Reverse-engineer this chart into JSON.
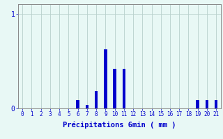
{
  "title": "",
  "xlabel": "Précipitations 6min ( mm )",
  "ylabel": "",
  "xlim": [
    -0.5,
    21.5
  ],
  "ylim": [
    0,
    1.1
  ],
  "yticks": [
    0,
    1
  ],
  "xtick_labels": [
    "0",
    "1",
    "2",
    "3",
    "4",
    "5",
    "6",
    "7",
    "8",
    "9",
    "10",
    "11",
    "12",
    "13",
    "14",
    "15",
    "16",
    "17",
    "18",
    "19",
    "20",
    "21"
  ],
  "background_color": "#e8f8f5",
  "bar_color": "#0000cc",
  "grid_color": "#b8d0cc",
  "categories": [
    0,
    1,
    2,
    3,
    4,
    5,
    6,
    7,
    8,
    9,
    10,
    11,
    12,
    13,
    14,
    15,
    16,
    17,
    18,
    19,
    20,
    21
  ],
  "values": [
    0,
    0,
    0,
    0,
    0,
    0,
    0.09,
    0.04,
    0.18,
    0.62,
    0.42,
    0.42,
    0,
    0,
    0,
    0,
    0,
    0,
    0,
    0.09,
    0.09,
    0.09
  ]
}
